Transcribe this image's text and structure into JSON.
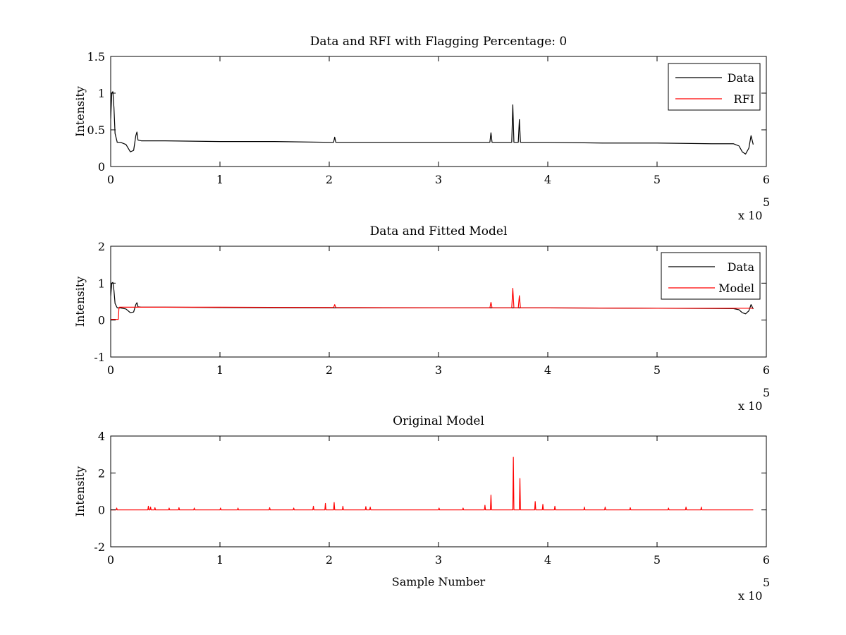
{
  "figure": {
    "background": "#ffffff"
  },
  "chart_data": [
    {
      "type": "line",
      "title": "Data and RFI with Flagging Percentage: 0",
      "xlabel": "",
      "ylabel": "Intensity",
      "xlim": [
        0,
        600000
      ],
      "ylim": [
        0,
        1.5
      ],
      "x_ticks": [
        0,
        1,
        2,
        3,
        4,
        5,
        6
      ],
      "y_ticks": [
        0,
        0.5,
        1,
        1.5
      ],
      "x_exponent": {
        "base": "x 10",
        "power": "5"
      },
      "grid": false,
      "legend_position": "top-right",
      "series": [
        {
          "name": "Data",
          "color": "#000000",
          "x": [
            0,
            1000,
            2000,
            3000,
            4000,
            6000,
            9000,
            14000,
            18000,
            21000,
            23000,
            24000,
            25000,
            28000,
            50000,
            100000,
            150000,
            200000,
            204000,
            205000,
            206000,
            250000,
            300000,
            347000,
            348000,
            349000,
            350000,
            367000,
            368000,
            369000,
            370000,
            372000,
            373000,
            374000,
            375000,
            390000,
            400000,
            450000,
            500000,
            550000,
            570000,
            575000,
            578000,
            581000,
            584000,
            586000,
            588000
          ],
          "values": [
            0.65,
            1.0,
            1.02,
            0.8,
            0.45,
            0.33,
            0.33,
            0.3,
            0.2,
            0.22,
            0.42,
            0.47,
            0.36,
            0.35,
            0.35,
            0.34,
            0.34,
            0.33,
            0.33,
            0.4,
            0.33,
            0.33,
            0.33,
            0.33,
            0.46,
            0.33,
            0.33,
            0.33,
            0.84,
            0.33,
            0.33,
            0.33,
            0.33,
            0.64,
            0.33,
            0.33,
            0.33,
            0.32,
            0.32,
            0.31,
            0.31,
            0.28,
            0.2,
            0.17,
            0.25,
            0.42,
            0.3
          ]
        },
        {
          "name": "RFI",
          "color": "#ff0000",
          "x": [],
          "values": []
        }
      ]
    },
    {
      "type": "line",
      "title": "Data and Fitted Model",
      "xlabel": "",
      "ylabel": "Intensity",
      "xlim": [
        0,
        600000
      ],
      "ylim": [
        -1,
        2
      ],
      "x_ticks": [
        0,
        1,
        2,
        3,
        4,
        5,
        6
      ],
      "y_ticks": [
        -1,
        0,
        1,
        2
      ],
      "x_exponent": {
        "base": "x 10",
        "power": "5"
      },
      "grid": false,
      "legend_position": "top-right",
      "series": [
        {
          "name": "Data",
          "color": "#000000",
          "x": [
            0,
            1000,
            2000,
            3000,
            4000,
            6000,
            9000,
            14000,
            18000,
            21000,
            23000,
            24000,
            25000,
            28000,
            50000,
            100000,
            200000,
            300000,
            400000,
            500000,
            570000,
            575000,
            578000,
            581000,
            584000,
            586000,
            588000
          ],
          "values": [
            0.65,
            1.0,
            1.02,
            0.8,
            0.45,
            0.33,
            0.33,
            0.3,
            0.2,
            0.22,
            0.42,
            0.47,
            0.36,
            0.35,
            0.35,
            0.34,
            0.33,
            0.33,
            0.33,
            0.32,
            0.31,
            0.28,
            0.2,
            0.17,
            0.25,
            0.42,
            0.3
          ]
        },
        {
          "name": "Model",
          "color": "#ff0000",
          "x": [
            0,
            7000,
            7500,
            8000,
            100000,
            200000,
            204000,
            205000,
            206000,
            300000,
            347000,
            348000,
            349000,
            367000,
            368000,
            369000,
            373000,
            374000,
            375000,
            400000,
            500000,
            588000
          ],
          "values": [
            0.02,
            0.02,
            0.3,
            0.35,
            0.35,
            0.34,
            0.34,
            0.42,
            0.34,
            0.33,
            0.33,
            0.48,
            0.33,
            0.33,
            0.86,
            0.33,
            0.33,
            0.66,
            0.33,
            0.33,
            0.32,
            0.32
          ]
        }
      ]
    },
    {
      "type": "line",
      "title": "Original Model",
      "xlabel": "Sample Number",
      "ylabel": "Intensity",
      "xlim": [
        0,
        600000
      ],
      "ylim": [
        -2,
        4
      ],
      "x_ticks": [
        0,
        1,
        2,
        3,
        4,
        5,
        6
      ],
      "y_ticks": [
        -2,
        0,
        2,
        4
      ],
      "x_exponent": {
        "base": "x 10",
        "power": "5"
      },
      "grid": false,
      "legend_position": "none",
      "series": [
        {
          "name": "",
          "color": "#ff0000",
          "x": [
            0,
            5000,
            5500,
            6000,
            34000,
            34500,
            35000,
            36000,
            36500,
            37000,
            40000,
            40500,
            41000,
            53000,
            53500,
            54000,
            62000,
            62500,
            63000,
            76000,
            76500,
            77000,
            100000,
            100500,
            101000,
            116000,
            116500,
            117000,
            145000,
            145500,
            146000,
            167000,
            167500,
            168000,
            185000,
            185500,
            186000,
            196000,
            196500,
            197000,
            204000,
            204500,
            205000,
            212000,
            212500,
            213000,
            233000,
            233500,
            234000,
            237000,
            237500,
            238000,
            300000,
            300500,
            301000,
            322000,
            322500,
            323000,
            342000,
            342500,
            343000,
            347500,
            348000,
            348500,
            368000,
            368500,
            369000,
            374000,
            374500,
            375000,
            388000,
            388500,
            389000,
            395000,
            395500,
            396000,
            406000,
            406500,
            407000,
            433000,
            433500,
            434000,
            452000,
            452500,
            453000,
            475000,
            475500,
            476000,
            510000,
            510500,
            511000,
            526000,
            526500,
            527000,
            540000,
            540500,
            541000,
            588000
          ],
          "values": [
            0,
            0,
            0.1,
            0,
            0,
            0.2,
            0,
            0,
            0.15,
            0,
            0,
            0.12,
            0,
            0,
            0.1,
            0,
            0,
            0.12,
            0,
            0,
            0.1,
            0,
            0,
            0.1,
            0,
            0,
            0.1,
            0,
            0,
            0.12,
            0,
            0,
            0.1,
            0,
            0,
            0.2,
            0,
            0,
            0.35,
            0,
            0,
            0.4,
            0,
            0,
            0.2,
            0,
            0,
            0.18,
            0,
            0,
            0.15,
            0,
            0,
            0.1,
            0,
            0,
            0.1,
            0,
            0,
            0.25,
            0,
            0,
            0.8,
            0,
            0,
            2.85,
            0,
            0,
            1.7,
            0,
            0,
            0.45,
            0,
            0,
            0.3,
            0,
            0,
            0.2,
            0,
            0,
            0.15,
            0,
            0,
            0.15,
            0,
            0,
            0.12,
            0,
            0,
            0.1,
            0,
            0,
            0.15,
            0,
            0,
            0.15,
            0,
            0
          ]
        }
      ]
    }
  ]
}
